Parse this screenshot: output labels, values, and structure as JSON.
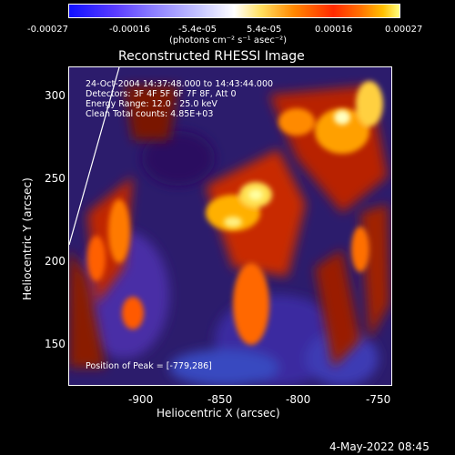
{
  "colorbar": {
    "ticks": [
      "-0.00027",
      "-0.00016",
      "-5.4e-05",
      "5.4e-05",
      "0.00016",
      "0.00027"
    ],
    "units_text": "(photons cm⁻² s⁻¹ asec⁻²)"
  },
  "plot": {
    "title": "Reconstructed RHESSI Image",
    "xlabel": "Heliocentric X (arcsec)",
    "ylabel": "Heliocentric Y (arcsec)",
    "xticks": [
      "-900",
      "-850",
      "-800",
      "-750"
    ],
    "yticks": [
      "300",
      "250",
      "200",
      "150"
    ],
    "annotation": {
      "line1": "24-Oct-2004 14:37:48.000 to 14:43:44.000",
      "line2": "Detectors: 3F 4F 5F 6F 7F 8F, Att 0",
      "line3": "Energy Range: 12.0 - 25.0 keV",
      "line4": "Clean    Total counts: 4.85E+03"
    },
    "peak_text": "Position of Peak = [-779,286]"
  },
  "footer": {
    "date": "4-May-2022 08:45"
  }
}
